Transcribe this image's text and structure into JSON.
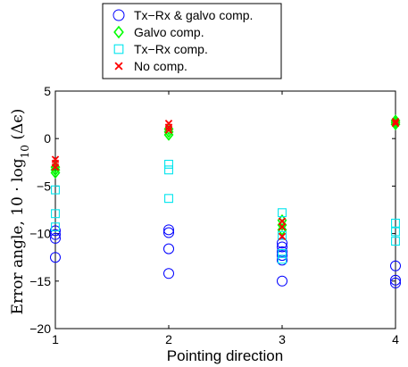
{
  "chart_data": {
    "type": "scatter",
    "title": "",
    "xlabel": "Pointing direction",
    "ylabel": {
      "main": "Error angle, 10 · log",
      "sub": "10",
      "tail": " (Δϵ)"
    },
    "xlim": [
      1,
      4
    ],
    "ylim": [
      -20,
      5
    ],
    "xticks": [
      1,
      2,
      3,
      4
    ],
    "yticks": [
      -20,
      -15,
      -10,
      -5,
      0,
      5
    ],
    "grid": false,
    "legend_position": "top-center",
    "series": [
      {
        "name": "Tx−Rx & galvo comp.",
        "marker": "circle",
        "color": "#0000ff",
        "points": [
          {
            "x": 1,
            "y": -12.5
          },
          {
            "x": 1,
            "y": -10.5
          },
          {
            "x": 1,
            "y": -10.1
          },
          {
            "x": 1,
            "y": -9.7
          },
          {
            "x": 2,
            "y": -14.2
          },
          {
            "x": 2,
            "y": -11.6
          },
          {
            "x": 2,
            "y": -9.9
          },
          {
            "x": 2,
            "y": -9.6
          },
          {
            "x": 3,
            "y": -15.0
          },
          {
            "x": 3,
            "y": -12.8
          },
          {
            "x": 3,
            "y": -12.3
          },
          {
            "x": 3,
            "y": -11.9
          },
          {
            "x": 3,
            "y": -11.4
          },
          {
            "x": 3,
            "y": -11.0
          },
          {
            "x": 4,
            "y": -15.2
          },
          {
            "x": 4,
            "y": -14.9
          },
          {
            "x": 4,
            "y": -13.4
          }
        ]
      },
      {
        "name": "Galvo comp.",
        "marker": "diamond",
        "color": "#00ff00",
        "points": [
          {
            "x": 1,
            "y": -3.6
          },
          {
            "x": 1,
            "y": -3.3
          },
          {
            "x": 1,
            "y": -3.0
          },
          {
            "x": 2,
            "y": 0.4
          },
          {
            "x": 2,
            "y": 0.7
          },
          {
            "x": 2,
            "y": 1.0
          },
          {
            "x": 3,
            "y": -9.6
          },
          {
            "x": 3,
            "y": -9.1
          },
          {
            "x": 3,
            "y": -8.6
          },
          {
            "x": 4,
            "y": 1.5
          },
          {
            "x": 4,
            "y": 1.7
          },
          {
            "x": 4,
            "y": 1.9
          }
        ]
      },
      {
        "name": "Tx−Rx comp.",
        "marker": "square",
        "color": "#00e5ee",
        "points": [
          {
            "x": 1,
            "y": -5.4
          },
          {
            "x": 1,
            "y": -7.9
          },
          {
            "x": 1,
            "y": -9.3
          },
          {
            "x": 2,
            "y": -2.7
          },
          {
            "x": 2,
            "y": -3.3
          },
          {
            "x": 2,
            "y": -6.3
          },
          {
            "x": 3,
            "y": -7.8
          },
          {
            "x": 3,
            "y": -10.2
          },
          {
            "x": 3,
            "y": -12.1
          },
          {
            "x": 3,
            "y": -12.7
          },
          {
            "x": 4,
            "y": -8.9
          },
          {
            "x": 4,
            "y": -9.8
          },
          {
            "x": 4,
            "y": -10.8
          }
        ]
      },
      {
        "name": "No comp.",
        "marker": "x",
        "color": "#ff0000",
        "points": [
          {
            "x": 1,
            "y": -2.2
          },
          {
            "x": 1,
            "y": -2.6
          },
          {
            "x": 1,
            "y": -3.0
          },
          {
            "x": 2,
            "y": 1.6
          },
          {
            "x": 2,
            "y": 1.2
          },
          {
            "x": 2,
            "y": 0.9
          },
          {
            "x": 3,
            "y": -8.7
          },
          {
            "x": 3,
            "y": -9.3
          },
          {
            "x": 3,
            "y": -10.3
          },
          {
            "x": 4,
            "y": 1.8
          },
          {
            "x": 4,
            "y": 1.6
          }
        ]
      }
    ]
  }
}
